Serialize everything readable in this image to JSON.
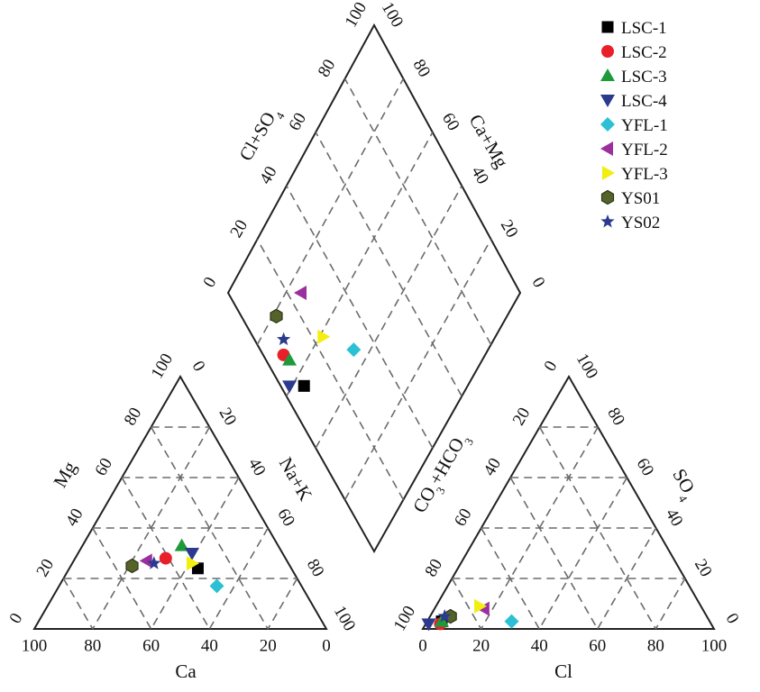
{
  "chart_data": {
    "type": "scatter",
    "subtype": "piper-trilinear",
    "grid": true,
    "legend_position": "top-right",
    "samples": [
      {
        "name": "LSC-1",
        "marker": "square",
        "color": "#000000"
      },
      {
        "name": "LSC-2",
        "marker": "circle",
        "color": "#e8202a"
      },
      {
        "name": "LSC-3",
        "marker": "triangle-up",
        "color": "#1f9a3a"
      },
      {
        "name": "LSC-4",
        "marker": "triangle-down",
        "color": "#2b3a8f"
      },
      {
        "name": "YFL-1",
        "marker": "diamond",
        "color": "#2cc0d5"
      },
      {
        "name": "YFL-2",
        "marker": "triangle-left",
        "color": "#9b2f9e"
      },
      {
        "name": "YFL-3",
        "marker": "triangle-right",
        "color": "#f2ee10"
      },
      {
        "name": "YS01",
        "marker": "hexagon",
        "color": "#55632a"
      },
      {
        "name": "YS02",
        "marker": "star",
        "color": "#2b3a8f"
      }
    ],
    "cation_triangle": {
      "axes": {
        "Ca": "Ca",
        "Mg": "Mg",
        "NaK": "Na+K"
      },
      "tick_labels": {
        "Ca": [
          "100",
          "80",
          "60",
          "40",
          "20",
          "0"
        ],
        "Mg": [
          "0",
          "20",
          "40",
          "60",
          "80",
          "100"
        ],
        "NaK": [
          "0",
          "20",
          "40",
          "60",
          "80",
          "100"
        ]
      },
      "points": [
        {
          "sample": "LSC-1",
          "Mg": 24,
          "NaK": 44
        },
        {
          "sample": "LSC-2",
          "Mg": 28,
          "NaK": 31
        },
        {
          "sample": "LSC-3",
          "Mg": 33,
          "NaK": 34
        },
        {
          "sample": "LSC-4",
          "Mg": 30,
          "NaK": 39
        },
        {
          "sample": "YFL-1",
          "Mg": 17,
          "NaK": 54
        },
        {
          "sample": "YFL-2",
          "Mg": 27,
          "NaK": 25
        },
        {
          "sample": "YFL-3",
          "Mg": 26,
          "NaK": 41
        },
        {
          "sample": "YS01",
          "Mg": 25,
          "NaK": 21
        },
        {
          "sample": "YS02",
          "Mg": 26,
          "NaK": 28
        }
      ]
    },
    "anion_triangle": {
      "axes": {
        "Cl": "Cl",
        "CO3HCO3": "CO3+HCO3",
        "SO4": "SO4"
      },
      "tick_labels": {
        "Cl": [
          "0",
          "20",
          "40",
          "60",
          "80",
          "100"
        ],
        "CO3HCO3": [
          "0",
          "20",
          "40",
          "60",
          "80",
          "100"
        ],
        "SO4": [
          "0",
          "20",
          "40",
          "60",
          "80",
          "100"
        ]
      },
      "points": [
        {
          "sample": "LSC-1",
          "Cl": 5,
          "SO4": 3
        },
        {
          "sample": "LSC-2",
          "Cl": 5,
          "SO4": 2
        },
        {
          "sample": "LSC-3",
          "Cl": 5,
          "SO4": 3
        },
        {
          "sample": "LSC-4",
          "Cl": 1,
          "SO4": 2
        },
        {
          "sample": "YFL-1",
          "Cl": 29,
          "SO4": 3
        },
        {
          "sample": "YFL-2",
          "Cl": 17,
          "SO4": 8
        },
        {
          "sample": "YFL-3",
          "Cl": 15,
          "SO4": 9
        },
        {
          "sample": "YS01",
          "Cl": 7,
          "SO4": 5
        },
        {
          "sample": "YS02",
          "Cl": 5,
          "SO4": 5
        }
      ]
    },
    "diamond": {
      "axes": {
        "ClSO4": "Cl+SO4",
        "CaMg": "Ca+Mg"
      },
      "tick_labels": {
        "ClSO4": [
          "0",
          "20",
          "40",
          "60",
          "80",
          "100"
        ],
        "CaMg": [
          "100",
          "80",
          "60",
          "40",
          "20",
          "0"
        ]
      },
      "points": [
        {
          "sample": "LSC-1",
          "ClSO4": 8,
          "CaMg": 56
        },
        {
          "sample": "LSC-2",
          "ClSO4": 7,
          "CaMg": 69
        },
        {
          "sample": "LSC-3",
          "ClSO4": 8,
          "CaMg": 66
        },
        {
          "sample": "LSC-4",
          "ClSO4": 3,
          "CaMg": 61
        },
        {
          "sample": "YFL-1",
          "ClSO4": 32,
          "CaMg": 46
        },
        {
          "sample": "YFL-2",
          "ClSO4": 25,
          "CaMg": 75
        },
        {
          "sample": "YFL-3",
          "ClSO4": 24,
          "CaMg": 59
        },
        {
          "sample": "YS01",
          "ClSO4": 12,
          "CaMg": 79
        },
        {
          "sample": "YS02",
          "ClSO4": 10,
          "CaMg": 72
        }
      ]
    }
  }
}
